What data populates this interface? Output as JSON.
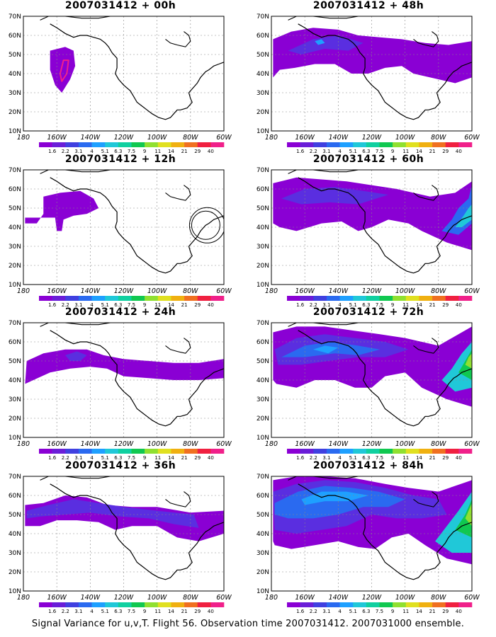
{
  "panels": [
    {
      "title": "2007031412 + 00h",
      "hour": 0
    },
    {
      "title": "2007031412 + 48h",
      "hour": 48
    },
    {
      "title": "2007031412 + 12h",
      "hour": 12
    },
    {
      "title": "2007031412 + 60h",
      "hour": 60
    },
    {
      "title": "2007031412 + 24h",
      "hour": 24
    },
    {
      "title": "2007031412 + 72h",
      "hour": 72
    },
    {
      "title": "2007031412 + 36h",
      "hour": 36
    },
    {
      "title": "2007031412 + 84h",
      "hour": 84
    }
  ],
  "axes": {
    "lat_labels": [
      "10N",
      "20N",
      "30N",
      "40N",
      "50N",
      "60N",
      "70N"
    ],
    "lon_labels": [
      "180",
      "160W",
      "140W",
      "120W",
      "100W",
      "80W",
      "60W"
    ]
  },
  "colorbar": {
    "labels": [
      "1.6",
      "2.2",
      "3.1",
      "4",
      "5.1",
      "6.3",
      "7.5",
      "9",
      "11",
      "14",
      "21",
      "29",
      "40"
    ],
    "colors": [
      "#8a00d4",
      "#6a1ed8",
      "#4040e0",
      "#2a6af0",
      "#1ea0ff",
      "#20c8d8",
      "#10d0a0",
      "#10c850",
      "#90e030",
      "#e0e020",
      "#f0b010",
      "#f07020",
      "#f02040",
      "#f0208a"
    ]
  },
  "caption": "Signal Variance for u,v,T. Flight 56. Observation time 2007031412. 2007031000 ensemble."
}
